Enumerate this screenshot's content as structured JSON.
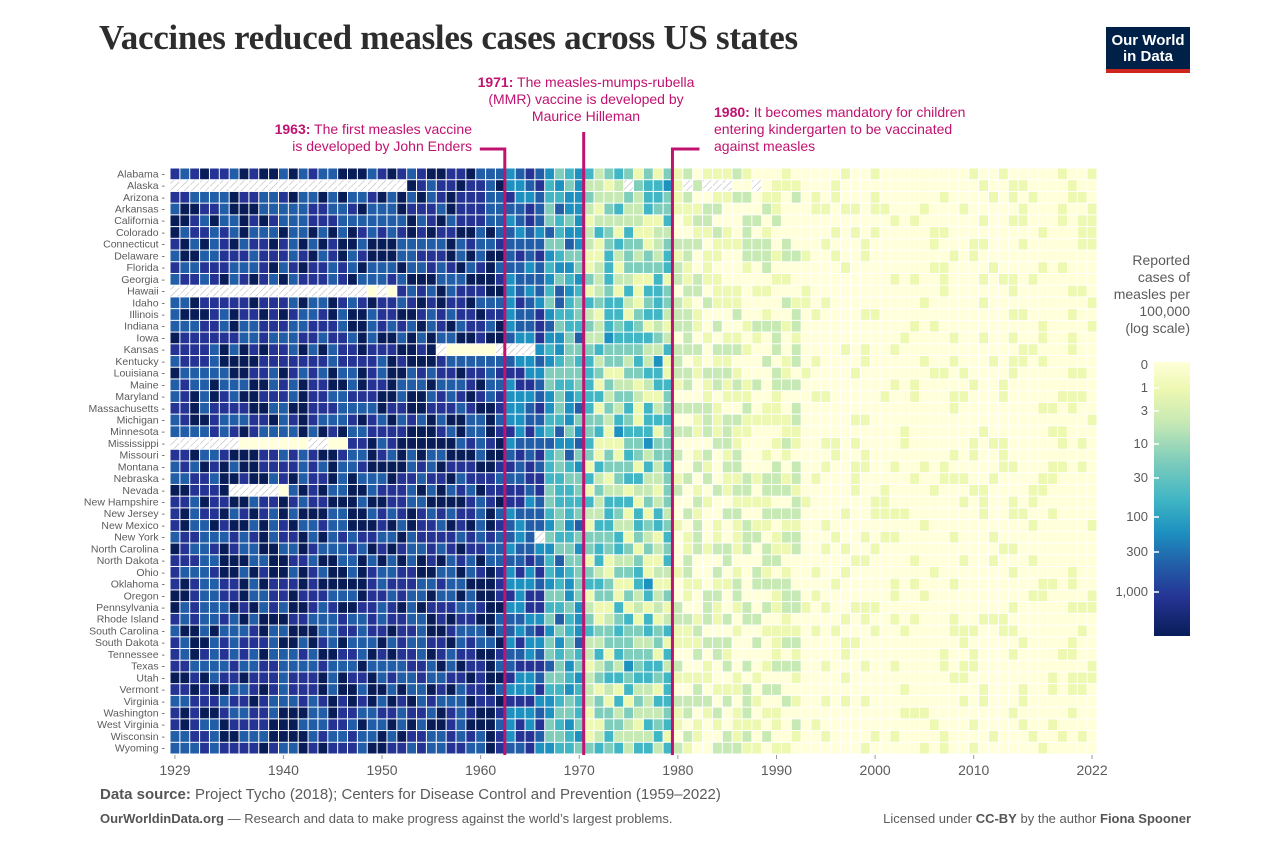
{
  "header": {
    "title": "Vaccines reduced measles cases across US states",
    "logo_line1": "Our World",
    "logo_line2": "in Data"
  },
  "annotations": [
    {
      "year_label": "1963:",
      "text": "The first measles vaccine is developed by John Enders",
      "line1": "The first measles vaccine",
      "line2": "is developed by John Enders",
      "line3": "",
      "year": 1963
    },
    {
      "year_label": "1971:",
      "text": "The measles-mumps-rubella (MMR) vaccine is developed by Maurice Hilleman",
      "line1": "The measles-mumps-rubella",
      "line2": "(MMR) vaccine is developed by",
      "line3": "Maurice Hilleman",
      "year": 1971
    },
    {
      "year_label": "1980:",
      "text": "It becomes mandatory for children entering kindergarten to be vaccinated against measles",
      "line1": "It becomes mandatory for children",
      "line2": "entering kindergarten to be vaccinated",
      "line3": "against measles",
      "year": 1980
    }
  ],
  "colors": {
    "annotation": "#c0126f",
    "logo_bg": "#002147",
    "logo_bar": "#ce261e",
    "scale": [
      "#ffffd9",
      "#edf8b1",
      "#c7e9b4",
      "#7fcdbb",
      "#41b6c4",
      "#1d91c0",
      "#225ea8",
      "#253494",
      "#081d58"
    ]
  },
  "legend": {
    "title_lines": [
      "Reported",
      "cases of",
      "measles per",
      "100,000",
      "(log scale)"
    ],
    "ticks": [
      "0",
      "1",
      "3",
      "10",
      "30",
      "100",
      "300",
      "1,000"
    ]
  },
  "footer": {
    "source_label": "Data source:",
    "source_text": "Project Tycho (2018); Centers for Disease Control and Prevention (1959–2022)",
    "site": "OurWorldinData.org",
    "tagline": "— Research and data to make progress against the world’s largest problems.",
    "license_prefix": "Licensed under",
    "license": "CC-BY",
    "author_prefix": "by the author",
    "author": "Fiona Spooner"
  },
  "chart_data": {
    "type": "heatmap",
    "title": "Vaccines reduced measles cases across US states",
    "xlabel": "",
    "ylabel": "",
    "x_range": [
      1929,
      2022
    ],
    "x_ticks": [
      1929,
      1940,
      1950,
      1960,
      1970,
      1980,
      1990,
      2000,
      2010,
      2022
    ],
    "color_scale": "log",
    "color_ticks": [
      0,
      1,
      3,
      10,
      30,
      100,
      300,
      1000
    ],
    "legend_position": "right",
    "states": [
      "Alabama",
      "Alaska",
      "Arizona",
      "Arkansas",
      "California",
      "Colorado",
      "Connecticut",
      "Delaware",
      "Florida",
      "Georgia",
      "Hawaii",
      "Idaho",
      "Illinois",
      "Indiana",
      "Iowa",
      "Kansas",
      "Kentucky",
      "Louisiana",
      "Maine",
      "Maryland",
      "Massachusetts",
      "Michigan",
      "Minnesota",
      "Mississippi",
      "Missouri",
      "Montana",
      "Nebraska",
      "Nevada",
      "New Hampshire",
      "New Jersey",
      "New Mexico",
      "New York",
      "North Carolina",
      "North Dakota",
      "Ohio",
      "Oklahoma",
      "Oregon",
      "Pennsylvania",
      "Rhode Island",
      "South Carolina",
      "South Dakota",
      "Tennessee",
      "Texas",
      "Utah",
      "Vermont",
      "Virginia",
      "Washington",
      "West Virginia",
      "Wisconsin",
      "Wyoming"
    ],
    "period_levels": [
      {
        "years": "1929-1962",
        "typical_cases_per_100k": "100-1,000"
      },
      {
        "years": "1963-1970",
        "typical_cases_per_100k": "10-300"
      },
      {
        "years": "1971-1979",
        "typical_cases_per_100k": "1-30"
      },
      {
        "years": "1980-1992",
        "typical_cases_per_100k": "0-10"
      },
      {
        "years": "1993-2022",
        "typical_cases_per_100k": "0-1"
      }
    ],
    "missing_data": [
      {
        "state": "Alaska",
        "years": "1929-1952"
      },
      {
        "state": "Alaska",
        "years": "1975, 1981, 1983-1985, 1988, 1992"
      },
      {
        "state": "Hawaii",
        "years": "1929-1952 (partial)"
      },
      {
        "state": "Kansas",
        "years": "1965-1966"
      },
      {
        "state": "Mississippi",
        "years": "1929-1945 (partial)"
      },
      {
        "state": "Nevada",
        "years": "1935-1939"
      },
      {
        "state": "New York",
        "years": "1966"
      }
    ],
    "event_lines": [
      1963,
      1971,
      1980
    ]
  }
}
